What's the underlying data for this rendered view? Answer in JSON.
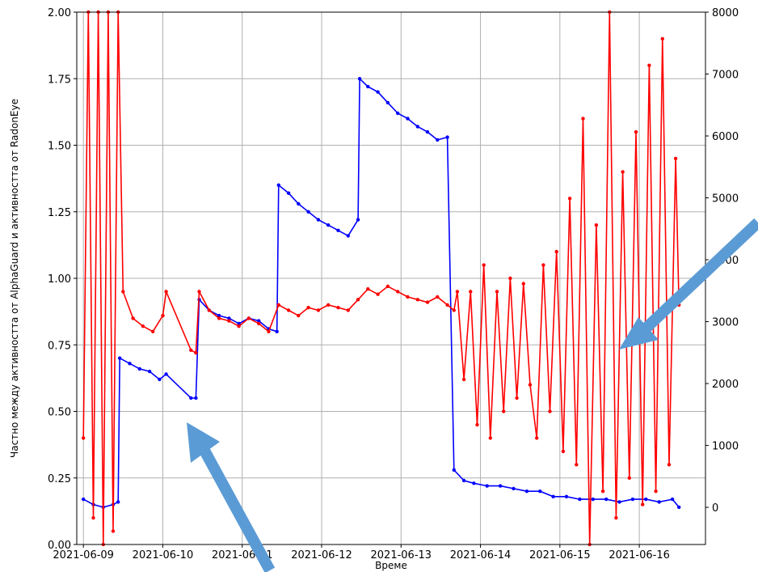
{
  "chart_data": {
    "type": "line",
    "title": "",
    "xlabel": "Време",
    "ylabel": "Частно между активността от AlphaGuard и активността от RadonEye",
    "x_tick_labels": [
      "2021-06-09",
      "2021-06-10",
      "2021-06-11",
      "2021-06-12",
      "2021-06-13",
      "2021-06-14",
      "2021-06-15",
      "2021-06-16"
    ],
    "xlim": [
      "2021-06-08 22:00",
      "2021-06-16 20:00"
    ],
    "ylim_left": [
      0,
      2.0
    ],
    "y_ticks_left": [
      "0.00",
      "0.25",
      "0.50",
      "0.75",
      "1.00",
      "1.25",
      "1.50",
      "1.75",
      "2.00"
    ],
    "ylim_right": [
      -600,
      8000
    ],
    "y_ticks_right": [
      "0",
      "1000",
      "2000",
      "3000",
      "4000",
      "5000",
      "6000",
      "7000",
      "8000"
    ],
    "grid": true,
    "markers": "dots",
    "series": [
      {
        "axis": "left",
        "color": "#0000ff",
        "x": [
          "2021-06-09 00:00",
          "2021-06-09 03:00",
          "2021-06-09 06:00",
          "2021-06-09 09:00",
          "2021-06-09 10:30",
          "2021-06-09 11:00",
          "2021-06-09 14:00",
          "2021-06-09 17:00",
          "2021-06-09 20:00",
          "2021-06-09 23:00",
          "2021-06-10 01:00",
          "2021-06-10 08:30",
          "2021-06-10 10:00",
          "2021-06-10 11:00",
          "2021-06-10 14:00",
          "2021-06-10 17:00",
          "2021-06-10 20:00",
          "2021-06-10 23:00",
          "2021-06-11 02:00",
          "2021-06-11 05:00",
          "2021-06-11 08:00",
          "2021-06-11 10:30",
          "2021-06-11 11:00",
          "2021-06-11 14:00",
          "2021-06-11 17:00",
          "2021-06-11 20:00",
          "2021-06-11 23:00",
          "2021-06-12 02:00",
          "2021-06-12 05:00",
          "2021-06-12 08:00",
          "2021-06-12 11:00",
          "2021-06-12 11:30",
          "2021-06-12 14:00",
          "2021-06-12 17:00",
          "2021-06-12 20:00",
          "2021-06-12 23:00",
          "2021-06-13 02:00",
          "2021-06-13 05:00",
          "2021-06-13 08:00",
          "2021-06-13 11:00",
          "2021-06-13 14:00",
          "2021-06-13 16:00",
          "2021-06-13 19:00",
          "2021-06-13 22:00",
          "2021-06-14 02:00",
          "2021-06-14 06:00",
          "2021-06-14 10:00",
          "2021-06-14 14:00",
          "2021-06-14 18:00",
          "2021-06-14 22:00",
          "2021-06-15 02:00",
          "2021-06-15 06:00",
          "2021-06-15 10:00",
          "2021-06-15 14:00",
          "2021-06-15 18:00",
          "2021-06-15 22:00",
          "2021-06-16 02:00",
          "2021-06-16 06:00",
          "2021-06-16 10:00",
          "2021-06-16 12:00"
        ],
        "y": [
          0.17,
          0.15,
          0.14,
          0.15,
          0.16,
          0.7,
          0.68,
          0.66,
          0.65,
          0.62,
          0.64,
          0.55,
          0.55,
          0.92,
          0.88,
          0.86,
          0.85,
          0.83,
          0.85,
          0.84,
          0.81,
          0.8,
          1.35,
          1.32,
          1.28,
          1.25,
          1.22,
          1.2,
          1.18,
          1.16,
          1.22,
          1.75,
          1.72,
          1.7,
          1.66,
          1.62,
          1.6,
          1.57,
          1.55,
          1.52,
          1.53,
          0.28,
          0.24,
          0.23,
          0.22,
          0.22,
          0.21,
          0.2,
          0.2,
          0.18,
          0.18,
          0.17,
          0.17,
          0.17,
          0.16,
          0.17,
          0.17,
          0.16,
          0.17,
          0.14
        ]
      },
      {
        "axis": "left",
        "color": "#ff0000",
        "x": [
          "2021-06-09 00:00",
          "2021-06-09 01:30",
          "2021-06-09 03:00",
          "2021-06-09 04:30",
          "2021-06-09 06:00",
          "2021-06-09 07:30",
          "2021-06-09 09:00",
          "2021-06-09 10:30",
          "2021-06-09 12:00",
          "2021-06-09 15:00",
          "2021-06-09 18:00",
          "2021-06-09 21:00",
          "2021-06-10 00:00",
          "2021-06-10 01:00",
          "2021-06-10 08:30",
          "2021-06-10 10:00",
          "2021-06-10 11:00",
          "2021-06-10 14:00",
          "2021-06-10 17:00",
          "2021-06-10 20:00",
          "2021-06-10 23:00",
          "2021-06-11 02:00",
          "2021-06-11 05:00",
          "2021-06-11 08:00",
          "2021-06-11 11:00",
          "2021-06-11 14:00",
          "2021-06-11 17:00",
          "2021-06-11 20:00",
          "2021-06-11 23:00",
          "2021-06-12 02:00",
          "2021-06-12 05:00",
          "2021-06-12 08:00",
          "2021-06-12 11:00",
          "2021-06-12 14:00",
          "2021-06-12 17:00",
          "2021-06-12 20:00",
          "2021-06-12 23:00",
          "2021-06-13 02:00",
          "2021-06-13 05:00",
          "2021-06-13 08:00",
          "2021-06-13 11:00",
          "2021-06-13 14:00",
          "2021-06-13 16:00",
          "2021-06-13 17:00",
          "2021-06-13 19:00",
          "2021-06-13 21:00",
          "2021-06-13 23:00",
          "2021-06-14 01:00",
          "2021-06-14 03:00",
          "2021-06-14 05:00",
          "2021-06-14 07:00",
          "2021-06-14 09:00",
          "2021-06-14 11:00",
          "2021-06-14 13:00",
          "2021-06-14 15:00",
          "2021-06-14 17:00",
          "2021-06-14 19:00",
          "2021-06-14 21:00",
          "2021-06-14 23:00",
          "2021-06-15 01:00",
          "2021-06-15 03:00",
          "2021-06-15 05:00",
          "2021-06-15 07:00",
          "2021-06-15 09:00",
          "2021-06-15 11:00",
          "2021-06-15 13:00",
          "2021-06-15 15:00",
          "2021-06-15 17:00",
          "2021-06-15 19:00",
          "2021-06-15 21:00",
          "2021-06-15 23:00",
          "2021-06-16 01:00",
          "2021-06-16 03:00",
          "2021-06-16 05:00",
          "2021-06-16 07:00",
          "2021-06-16 09:00",
          "2021-06-16 11:00",
          "2021-06-16 12:00"
        ],
        "y": [
          0.4,
          2.0,
          0.1,
          2.0,
          0.0,
          2.0,
          0.05,
          2.0,
          0.95,
          0.85,
          0.82,
          0.8,
          0.86,
          0.95,
          0.73,
          0.72,
          0.95,
          0.88,
          0.85,
          0.84,
          0.82,
          0.85,
          0.83,
          0.8,
          0.9,
          0.88,
          0.86,
          0.89,
          0.88,
          0.9,
          0.89,
          0.88,
          0.92,
          0.96,
          0.94,
          0.97,
          0.95,
          0.93,
          0.92,
          0.91,
          0.93,
          0.9,
          0.88,
          0.95,
          0.62,
          0.95,
          0.45,
          1.05,
          0.4,
          0.95,
          0.5,
          1.0,
          0.55,
          0.98,
          0.6,
          0.4,
          1.05,
          0.5,
          1.1,
          0.35,
          1.3,
          0.3,
          1.6,
          0.0,
          1.2,
          0.2,
          2.0,
          0.1,
          1.4,
          0.25,
          1.55,
          0.15,
          1.8,
          0.2,
          1.9,
          0.3,
          1.45,
          0.9
        ]
      }
    ]
  }
}
